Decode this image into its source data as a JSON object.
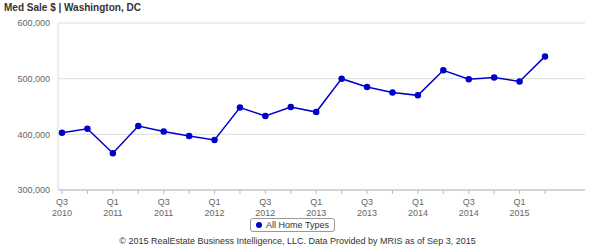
{
  "chart_data": {
    "type": "line",
    "title": "Med Sale $ | Washington, DC",
    "source": "© 2015 RealEstate Business Intelligence, LLC. Data Provided by MRIS as of Sep 3, 2015",
    "categories": [
      "Q3 2010",
      null,
      "Q1 2011",
      null,
      "Q3 2011",
      null,
      "Q1 2012",
      null,
      "Q3 2012",
      null,
      "Q1 2013",
      null,
      "Q3 2013",
      null,
      "Q1 2014",
      null,
      "Q3 2014",
      null,
      "Q1 2015",
      null
    ],
    "series": [
      {
        "name": "All Home Types",
        "color": "#0000cc",
        "marker": "circle",
        "values": [
          403000,
          410000,
          366000,
          415000,
          405000,
          397000,
          390000,
          448000,
          433000,
          449000,
          440000,
          500000,
          485000,
          475000,
          470000,
          515000,
          499000,
          502000,
          495000,
          540000
        ]
      }
    ],
    "ylim": [
      300000,
      600000
    ],
    "yticks": [
      {
        "value": 300000,
        "label": "300,000"
      },
      {
        "value": 400000,
        "label": "400,000"
      },
      {
        "value": 500000,
        "label": "500,000"
      },
      {
        "value": 600000,
        "label": "600,000"
      }
    ],
    "grid": true,
    "legend": "bottom"
  }
}
